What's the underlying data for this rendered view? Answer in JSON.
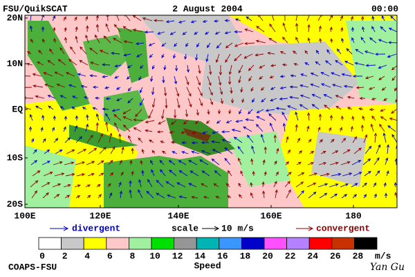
{
  "header": {
    "source": "FSU/QuikSCAT",
    "date": "2 August 2004",
    "time": "00:00"
  },
  "map": {
    "lat_labels": [
      "20N",
      "10N",
      "EQ",
      "10S",
      "20S"
    ],
    "lon_labels": [
      "100E",
      "120E",
      "140E",
      "160E",
      "180"
    ]
  },
  "legend": {
    "divergent": "divergent",
    "scale": "scale",
    "scale_value": "10 m/s",
    "convergent": "convergent"
  },
  "colorbar": {
    "labels": [
      "0",
      "2",
      "4",
      "6",
      "8",
      "10",
      "12",
      "14",
      "16",
      "18",
      "20",
      "22",
      "24",
      "26",
      "28"
    ],
    "unit": "m/s",
    "title": "Speed",
    "colors": [
      "#ffffff",
      "#c8c8c8",
      "#ffff00",
      "#ffc8c8",
      "#a0f0a0",
      "#00e000",
      "#969696",
      "#00b4b4",
      "#3c96ff",
      "#0000c8",
      "#ff50ff",
      "#b482ff",
      "#ff0000",
      "#c83200",
      "#000000"
    ]
  },
  "footer": {
    "org": "COAPS-FSU",
    "author": "Yan Gu"
  }
}
